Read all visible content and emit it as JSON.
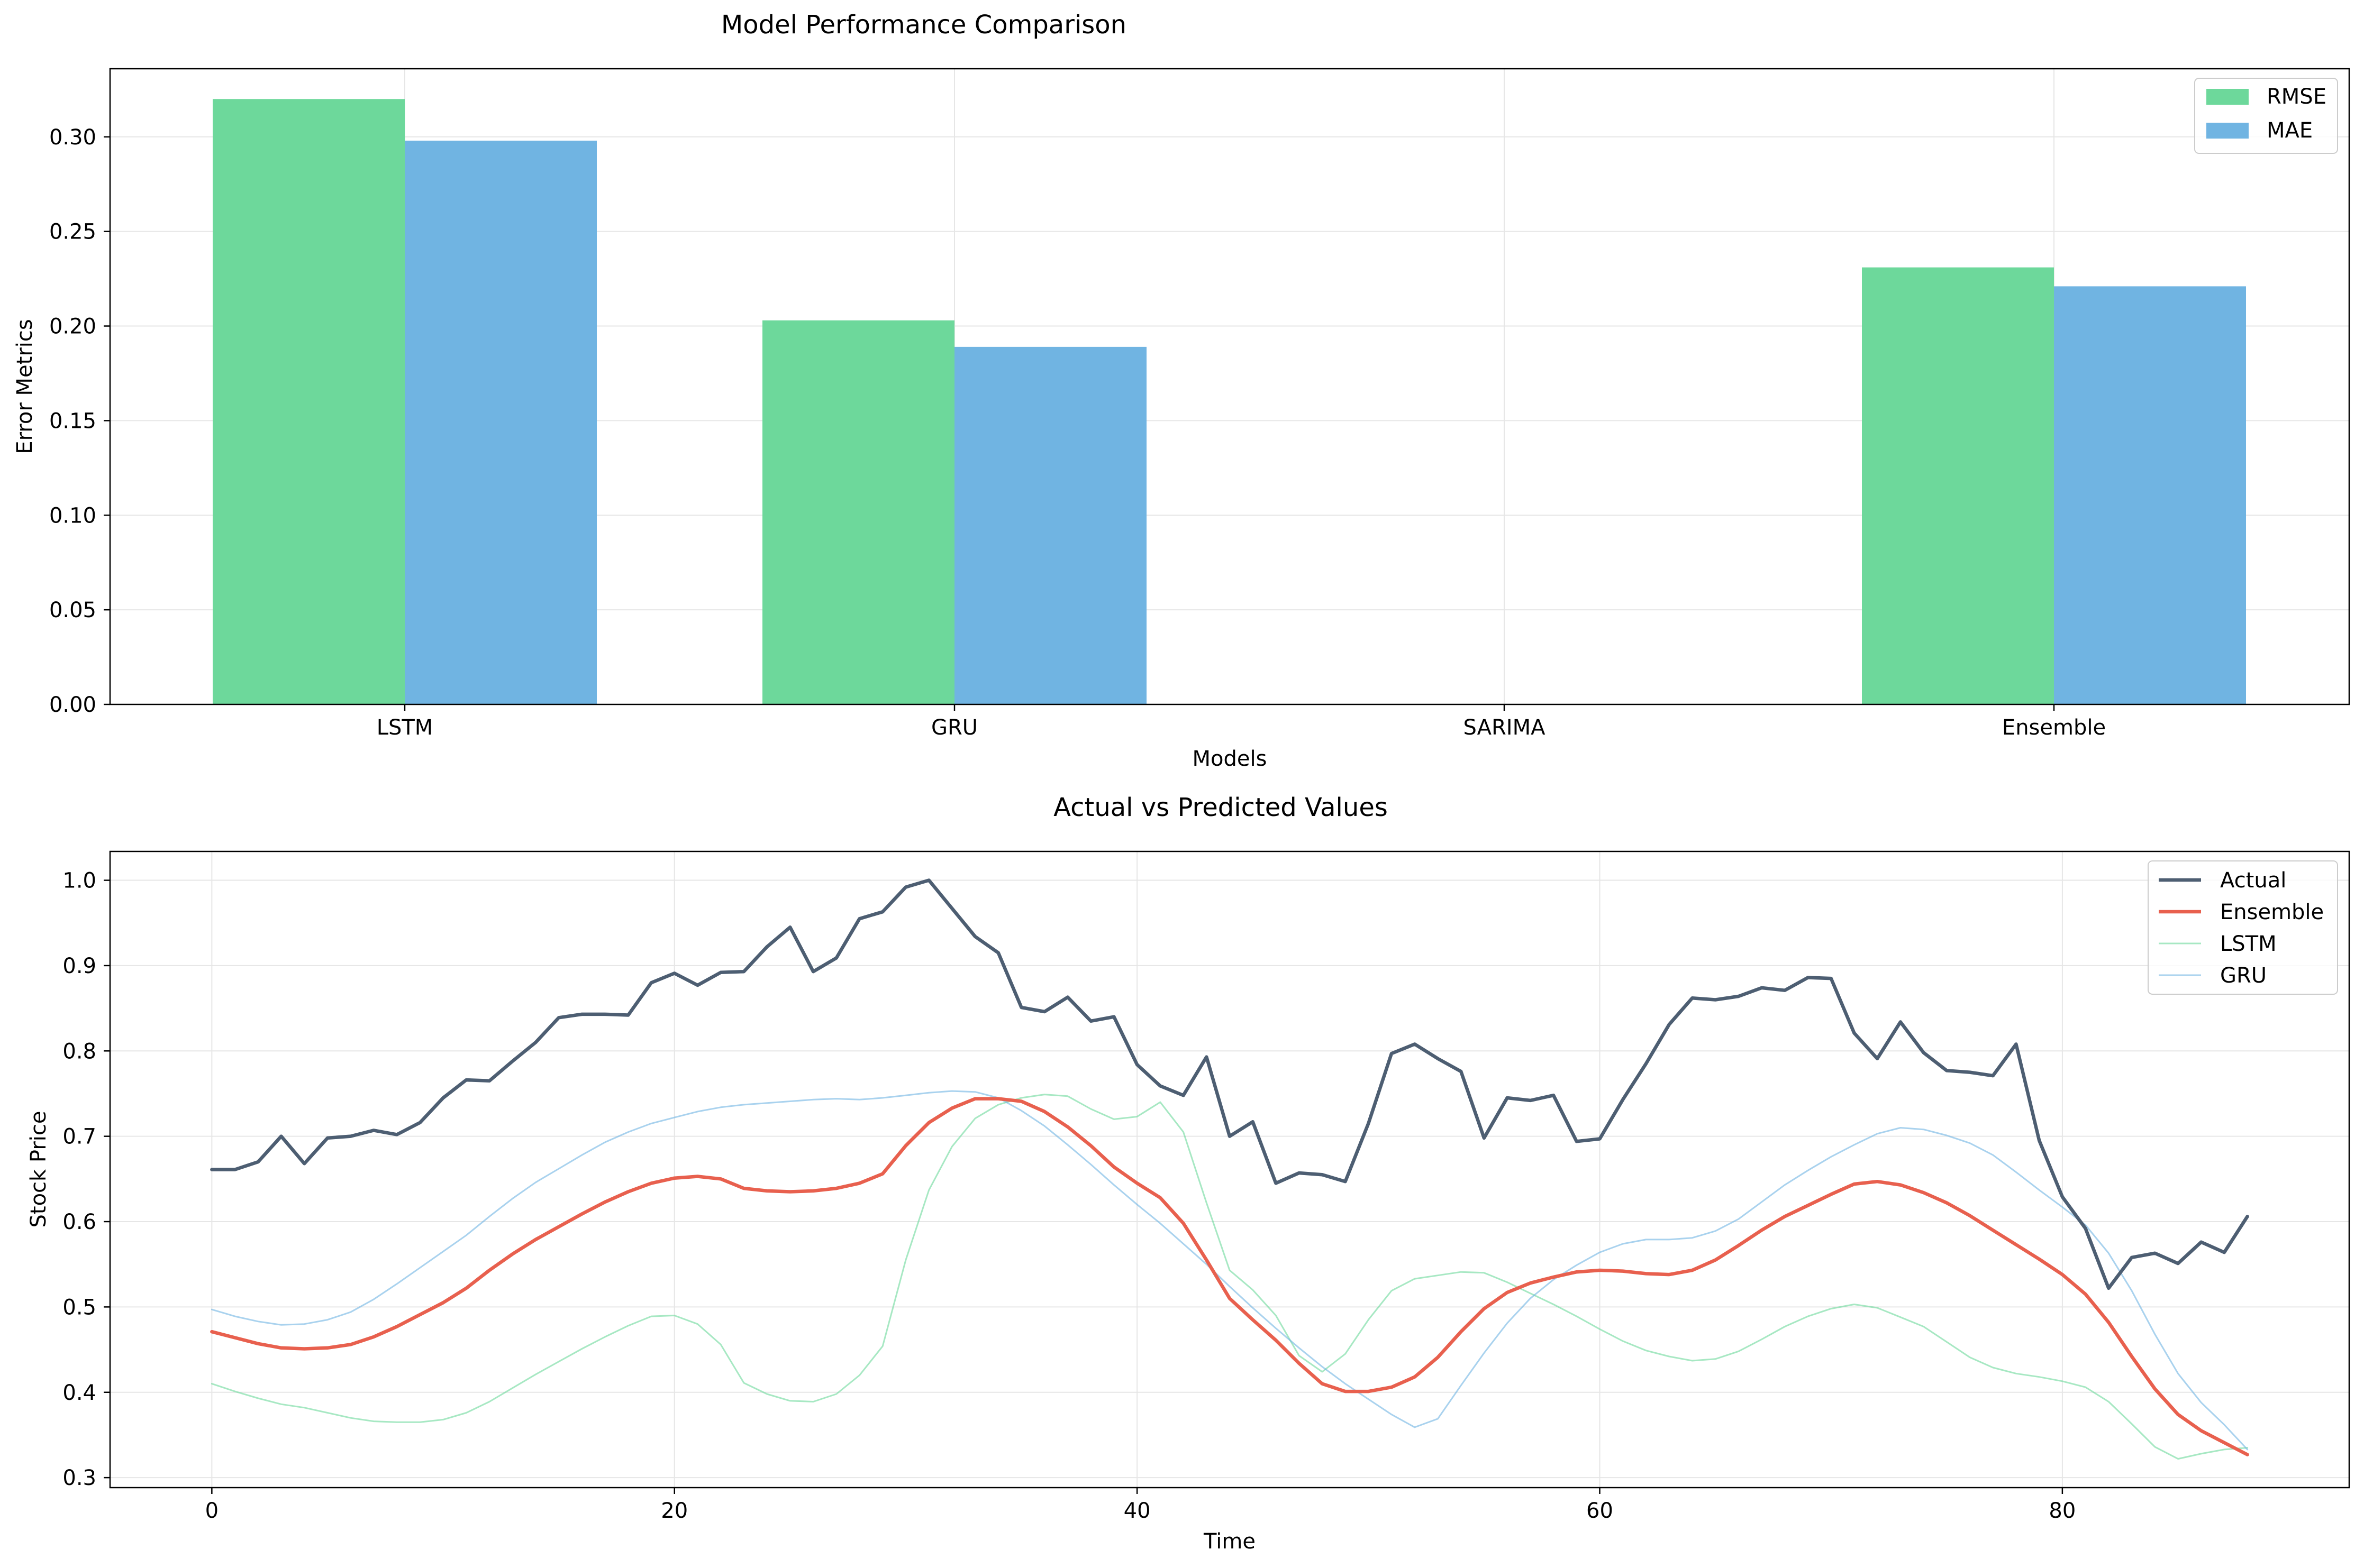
{
  "chart_data": [
    {
      "type": "bar",
      "title": "Model Performance Comparison",
      "xlabel": "Models",
      "ylabel": "Error Metrics",
      "categories": [
        "LSTM",
        "GRU",
        "SARIMA",
        "Ensemble"
      ],
      "series": [
        {
          "name": "RMSE",
          "color": "#6dd89b",
          "values": [
            0.32,
            0.203,
            null,
            0.231
          ]
        },
        {
          "name": "MAE",
          "color": "#70b4e2",
          "values": [
            0.298,
            0.189,
            null,
            0.221
          ]
        }
      ],
      "ylim": [
        0,
        0.336
      ],
      "yticks": [
        0.0,
        0.05,
        0.1,
        0.15,
        0.2,
        0.25,
        0.3
      ],
      "ytick_labels": [
        "0.00",
        "0.05",
        "0.10",
        "0.15",
        "0.20",
        "0.25",
        "0.30"
      ],
      "grid": true,
      "legend": "top-right"
    },
    {
      "type": "line",
      "title": "Actual vs Predicted Values",
      "xlabel": "Time",
      "ylabel": "Stock Price",
      "x_start": 0,
      "x_step": 1,
      "xlim": [
        -4.4,
        92.4
      ],
      "ylim": [
        0.2883,
        1.0338
      ],
      "xticks": [
        0,
        20,
        40,
        60,
        80
      ],
      "xtick_labels": [
        "0",
        "20",
        "40",
        "60",
        "80"
      ],
      "yticks": [
        0.3,
        0.4,
        0.5,
        0.6,
        0.7,
        0.8,
        0.9,
        1.0
      ],
      "ytick_labels": [
        "0.3",
        "0.4",
        "0.5",
        "0.6",
        "0.7",
        "0.8",
        "0.9",
        "1.0"
      ],
      "grid": true,
      "legend": "top-right",
      "series": [
        {
          "name": "Actual",
          "color": "#4d5e72",
          "width": 6.5,
          "opacity": 1,
          "values": [
            0.661,
            0.661,
            0.67,
            0.7,
            0.668,
            0.698,
            0.7,
            0.707,
            0.702,
            0.716,
            0.745,
            0.766,
            0.765,
            0.788,
            0.81,
            0.839,
            0.843,
            0.843,
            0.842,
            0.88,
            0.891,
            0.877,
            0.892,
            0.893,
            0.922,
            0.945,
            0.893,
            0.909,
            0.955,
            0.963,
            0.992,
            1.0,
            0.967,
            0.934,
            0.915,
            0.851,
            0.846,
            0.863,
            0.835,
            0.84,
            0.784,
            0.759,
            0.748,
            0.793,
            0.7,
            0.717,
            0.645,
            0.657,
            0.655,
            0.647,
            0.715,
            0.797,
            0.808,
            0.791,
            0.776,
            0.698,
            0.745,
            0.742,
            0.748,
            0.694,
            0.697,
            0.743,
            0.785,
            0.831,
            0.862,
            0.86,
            0.864,
            0.874,
            0.871,
            0.886,
            0.885,
            0.821,
            0.791,
            0.834,
            0.798,
            0.777,
            0.775,
            0.771,
            0.808,
            0.695,
            0.629,
            0.592,
            0.522,
            0.558,
            0.563,
            0.551,
            0.576,
            0.564,
            0.606
          ]
        },
        {
          "name": "Ensemble",
          "color": "#e8604e",
          "width": 6.5,
          "opacity": 1,
          "values": [
            0.471,
            0.464,
            0.457,
            0.452,
            0.451,
            0.452,
            0.456,
            0.465,
            0.477,
            0.491,
            0.505,
            0.522,
            0.543,
            0.562,
            0.579,
            0.594,
            0.609,
            0.623,
            0.635,
            0.645,
            0.651,
            0.653,
            0.65,
            0.639,
            0.636,
            0.635,
            0.636,
            0.639,
            0.645,
            0.656,
            0.689,
            0.716,
            0.733,
            0.744,
            0.744,
            0.741,
            0.729,
            0.711,
            0.689,
            0.664,
            0.645,
            0.628,
            0.598,
            0.555,
            0.51,
            0.485,
            0.461,
            0.434,
            0.41,
            0.401,
            0.401,
            0.406,
            0.418,
            0.441,
            0.471,
            0.498,
            0.517,
            0.528,
            0.535,
            0.541,
            0.543,
            0.542,
            0.539,
            0.538,
            0.543,
            0.555,
            0.572,
            0.59,
            0.606,
            0.619,
            0.632,
            0.644,
            0.647,
            0.643,
            0.634,
            0.622,
            0.607,
            0.59,
            0.573,
            0.556,
            0.538,
            0.515,
            0.482,
            0.442,
            0.404,
            0.374,
            0.355,
            0.341,
            0.327
          ]
        },
        {
          "name": "LSTM",
          "color": "#6dd89b",
          "width": 3,
          "opacity": 0.6,
          "values": [
            0.41,
            0.401,
            0.393,
            0.386,
            0.382,
            0.376,
            0.37,
            0.366,
            0.365,
            0.365,
            0.368,
            0.376,
            0.389,
            0.405,
            0.421,
            0.436,
            0.451,
            0.465,
            0.478,
            0.489,
            0.49,
            0.48,
            0.456,
            0.411,
            0.398,
            0.39,
            0.389,
            0.398,
            0.42,
            0.454,
            0.555,
            0.637,
            0.688,
            0.721,
            0.737,
            0.745,
            0.749,
            0.747,
            0.732,
            0.72,
            0.723,
            0.74,
            0.705,
            0.622,
            0.543,
            0.52,
            0.49,
            0.443,
            0.424,
            0.445,
            0.485,
            0.519,
            0.533,
            0.537,
            0.541,
            0.54,
            0.529,
            0.516,
            0.503,
            0.489,
            0.474,
            0.46,
            0.449,
            0.442,
            0.437,
            0.439,
            0.448,
            0.462,
            0.477,
            0.489,
            0.498,
            0.503,
            0.499,
            0.488,
            0.477,
            0.459,
            0.441,
            0.429,
            0.422,
            0.418,
            0.413,
            0.406,
            0.389,
            0.363,
            0.336,
            0.322,
            0.328,
            0.333,
            0.335
          ]
        },
        {
          "name": "GRU",
          "color": "#70b4e2",
          "width": 3,
          "opacity": 0.6,
          "values": [
            0.497,
            0.489,
            0.483,
            0.479,
            0.48,
            0.485,
            0.494,
            0.509,
            0.527,
            0.546,
            0.565,
            0.584,
            0.606,
            0.627,
            0.646,
            0.662,
            0.678,
            0.693,
            0.705,
            0.715,
            0.722,
            0.729,
            0.734,
            0.737,
            0.739,
            0.741,
            0.743,
            0.744,
            0.743,
            0.745,
            0.748,
            0.751,
            0.753,
            0.752,
            0.745,
            0.73,
            0.712,
            0.69,
            0.667,
            0.643,
            0.62,
            0.598,
            0.574,
            0.55,
            0.524,
            0.499,
            0.475,
            0.452,
            0.43,
            0.41,
            0.392,
            0.374,
            0.359,
            0.369,
            0.408,
            0.446,
            0.481,
            0.51,
            0.532,
            0.549,
            0.564,
            0.574,
            0.579,
            0.579,
            0.581,
            0.589,
            0.603,
            0.623,
            0.643,
            0.66,
            0.676,
            0.69,
            0.703,
            0.71,
            0.708,
            0.701,
            0.692,
            0.678,
            0.658,
            0.637,
            0.617,
            0.596,
            0.563,
            0.519,
            0.468,
            0.422,
            0.388,
            0.362,
            0.333
          ]
        }
      ]
    }
  ]
}
